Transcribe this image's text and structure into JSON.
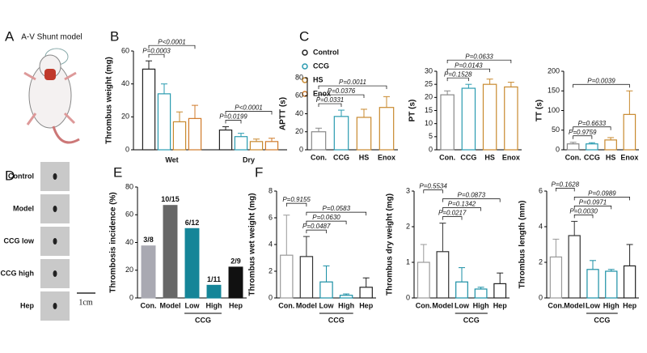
{
  "panel_a": {
    "label": "A",
    "title": "A-V Shunt model"
  },
  "panel_d": {
    "label": "D",
    "samples": [
      "Control",
      "Model",
      "CCG low",
      "CCG high",
      "Hep"
    ],
    "scale_label": "1cm"
  },
  "chart_data": [
    {
      "type": "grouped_bar",
      "panel": "B",
      "y_label": "Thrombus weight (mg)",
      "categories": [
        "Wet",
        "Dry"
      ],
      "series": [
        {
          "name": "Control",
          "color": "#222222",
          "values": [
            49,
            12
          ],
          "errors": [
            5,
            2
          ]
        },
        {
          "name": "CCG",
          "color": "#2a9bb0",
          "values": [
            34,
            8
          ],
          "errors": [
            6,
            2
          ]
        },
        {
          "name": "HS",
          "color": "#c8892e",
          "values": [
            17,
            5
          ],
          "errors": [
            6,
            1.5
          ]
        },
        {
          "name": "Enox",
          "color": "#d07a2a",
          "values": [
            19,
            5
          ],
          "errors": [
            8,
            2
          ]
        }
      ],
      "ylim": [
        0,
        60
      ],
      "yticks": [
        0,
        20,
        40,
        60
      ],
      "legend": "right",
      "annotations": [
        {
          "text": "P=0.0003",
          "category": 0,
          "from": 0,
          "to": 1
        },
        {
          "text": "P<0.0001",
          "category": 0,
          "from": 0,
          "to": 3
        },
        {
          "text": "P=0.0199",
          "category": 1,
          "from": 0,
          "to": 1
        },
        {
          "text": "P<0.0001",
          "category": 1,
          "from": 0,
          "to": 3
        }
      ]
    },
    {
      "type": "bar",
      "panel": "C",
      "y_label": "APTT (s)",
      "categories": [
        "Con.",
        "CCG",
        "HS",
        "Enox"
      ],
      "colors": [
        "#888888",
        "#2a9bb0",
        "#c8892e",
        "#c8892e"
      ],
      "values": [
        20,
        37,
        36,
        47
      ],
      "errors": [
        4,
        7,
        9,
        12
      ],
      "ylim": [
        0,
        80
      ],
      "yticks": [
        0,
        20,
        40,
        60,
        80
      ],
      "annotations": [
        {
          "text": "P=0.0331",
          "from": 0,
          "to": 1
        },
        {
          "text": "P=0.0376",
          "from": 0,
          "to": 2
        },
        {
          "text": "P=0.0011",
          "from": 0,
          "to": 3
        }
      ]
    },
    {
      "type": "bar",
      "y_label": "PT (s)",
      "categories": [
        "Con.",
        "CCG",
        "HS",
        "Enox"
      ],
      "colors": [
        "#888888",
        "#2a9bb0",
        "#c8892e",
        "#c8892e"
      ],
      "values": [
        21,
        23.5,
        25,
        24
      ],
      "errors": [
        1.5,
        1.5,
        2,
        1.8
      ],
      "ylim": [
        0,
        30
      ],
      "yticks": [
        0,
        5,
        10,
        15,
        20,
        25,
        30
      ],
      "annotations": [
        {
          "text": "P=0.1528",
          "from": 0,
          "to": 1
        },
        {
          "text": "P=0.0143",
          "from": 0,
          "to": 2
        },
        {
          "text": "P=0.0633",
          "from": 0,
          "to": 3
        }
      ]
    },
    {
      "type": "bar",
      "y_label": "TT (s)",
      "categories": [
        "Con.",
        "CCG",
        "HS",
        "Enox"
      ],
      "colors": [
        "#888888",
        "#2a9bb0",
        "#c8892e",
        "#c8892e"
      ],
      "values": [
        15,
        15,
        25,
        90
      ],
      "errors": [
        4,
        3,
        6,
        60
      ],
      "ylim": [
        0,
        200
      ],
      "yticks": [
        0,
        50,
        100,
        150,
        200
      ],
      "annotations": [
        {
          "text": "P=0.9759",
          "from": 0,
          "to": 1
        },
        {
          "text": "P=0.6633",
          "from": 0,
          "to": 2
        },
        {
          "text": "P=0.0039",
          "from": 0,
          "to": 3
        }
      ]
    },
    {
      "type": "bar",
      "panel": "E",
      "y_label": "Thrombosis incidence (%)",
      "categories": [
        "Con.",
        "Model",
        "Low",
        "High",
        "Hep"
      ],
      "group": {
        "label": "CCG",
        "from": 2,
        "to": 3
      },
      "filled": true,
      "colors": [
        "#a9a9b2",
        "#676767",
        "#158598",
        "#158598",
        "#111111"
      ],
      "values": [
        37.5,
        66.7,
        50,
        9.1,
        22.2
      ],
      "value_labels": [
        "3/8",
        "10/15",
        "6/12",
        "1/11",
        "2/9"
      ],
      "ylim": [
        0,
        80
      ],
      "yticks": [
        0,
        20,
        40,
        60,
        80
      ]
    },
    {
      "type": "bar",
      "panel": "F",
      "y_label": "Thrombus wet weight (mg)",
      "categories": [
        "Con.",
        "Model",
        "Low",
        "High",
        "Hep"
      ],
      "group": {
        "label": "CCG",
        "from": 2,
        "to": 3
      },
      "colors": [
        "#999999",
        "#333333",
        "#1a8fa5",
        "#1a8fa5",
        "#222222"
      ],
      "values": [
        3.2,
        3.1,
        1.2,
        0.2,
        0.8
      ],
      "errors": [
        3,
        1.5,
        1.2,
        0.1,
        0.7
      ],
      "ylim": [
        0,
        8
      ],
      "yticks": [
        0,
        2,
        4,
        6,
        8
      ],
      "annotations": [
        {
          "text": "P=0.0487",
          "from": 1,
          "to": 2
        },
        {
          "text": "P=0.0630",
          "from": 1,
          "to": 3
        },
        {
          "text": "P=0.0583",
          "from": 1,
          "to": 4
        },
        {
          "text": "P=0.9155",
          "from": 0,
          "to": 1
        }
      ]
    },
    {
      "type": "bar",
      "y_label": "Thrombus dry weight (mg)",
      "categories": [
        "Con.",
        "Model",
        "Low",
        "High",
        "Hep"
      ],
      "group": {
        "label": "CCG",
        "from": 2,
        "to": 3
      },
      "colors": [
        "#999999",
        "#333333",
        "#1a8fa5",
        "#1a8fa5",
        "#222222"
      ],
      "values": [
        1.0,
        1.3,
        0.45,
        0.25,
        0.4
      ],
      "errors": [
        0.5,
        0.8,
        0.4,
        0.05,
        0.3
      ],
      "ylim": [
        0,
        3
      ],
      "yticks": [
        0,
        1,
        2,
        3
      ],
      "annotations": [
        {
          "text": "P=0.0217",
          "from": 1,
          "to": 2
        },
        {
          "text": "P=0.1342",
          "from": 1,
          "to": 3
        },
        {
          "text": "P=0.0873",
          "from": 1,
          "to": 4
        },
        {
          "text": "P=0.5534",
          "from": 0,
          "to": 1
        }
      ]
    },
    {
      "type": "bar",
      "y_label": "Thrombus length (mm)",
      "categories": [
        "Con.",
        "Model",
        "Low",
        "High",
        "Hep"
      ],
      "group": {
        "label": "CCG",
        "from": 2,
        "to": 3
      },
      "colors": [
        "#999999",
        "#333333",
        "#1a8fa5",
        "#1a8fa5",
        "#222222"
      ],
      "values": [
        2.3,
        3.5,
        1.6,
        1.5,
        1.8
      ],
      "errors": [
        1,
        0.8,
        0.5,
        0.1,
        1.2
      ],
      "ylim": [
        0,
        6
      ],
      "yticks": [
        0,
        2,
        4,
        6
      ],
      "annotations": [
        {
          "text": "P=0.0030",
          "from": 1,
          "to": 2
        },
        {
          "text": "P=0.0971",
          "from": 1,
          "to": 3
        },
        {
          "text": "P=0.0989",
          "from": 1,
          "to": 4
        },
        {
          "text": "P=0.1628",
          "from": 0,
          "to": 1
        }
      ]
    }
  ]
}
